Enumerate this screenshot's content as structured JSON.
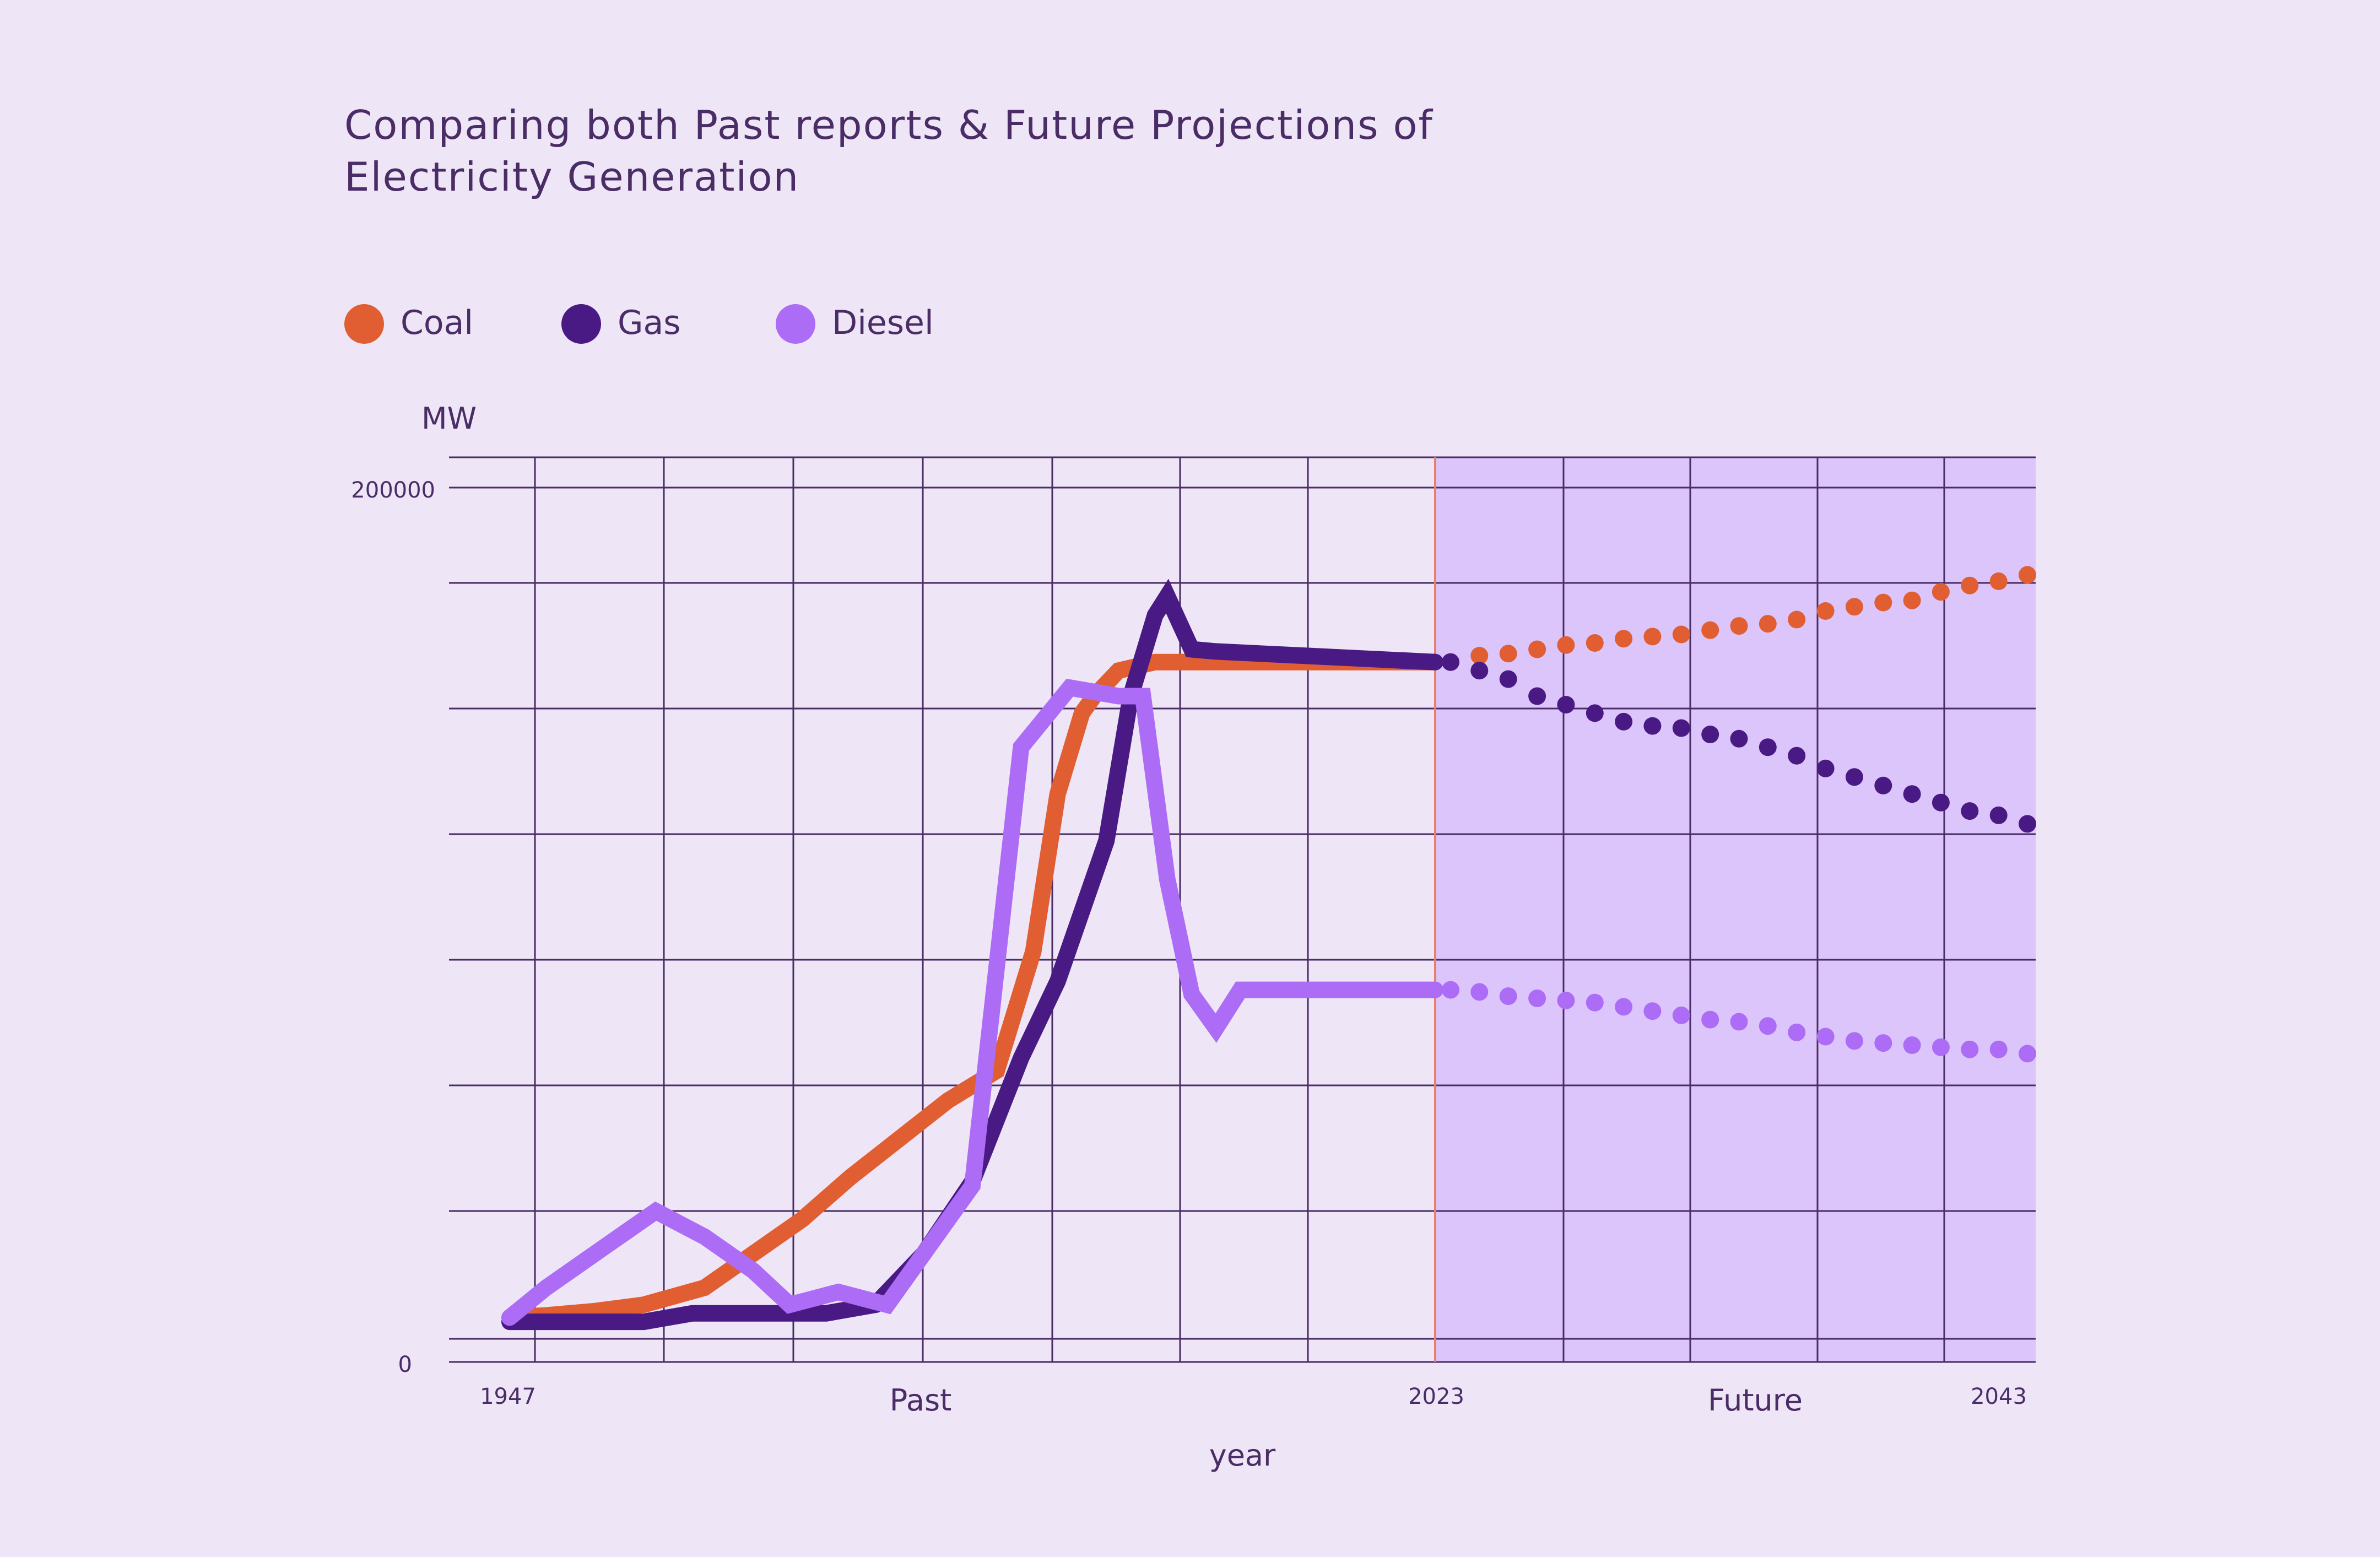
{
  "title": {
    "line1": "Comparing both Past reports & Future Projections of",
    "line2": "Electricity Generation"
  },
  "legend": [
    {
      "label": "Coal",
      "color": "#E15E32"
    },
    {
      "label": "Gas",
      "color": "#4A1A84"
    },
    {
      "label": "Diesel",
      "color": "#AD6CF5"
    }
  ],
  "chart_data": {
    "type": "line",
    "title": "Comparing both Past reports & Future Projections of Electricity Generation",
    "xlabel": "year",
    "ylabel": "MW",
    "xlim": [
      1945,
      2044
    ],
    "ylim": [
      -5000,
      205000
    ],
    "x_tick_labels": [
      "1947",
      "2023",
      "2043"
    ],
    "y_tick_labels": [
      "200000",
      "0"
    ],
    "region_labels": [
      "Past",
      "Future"
    ],
    "divider_year": 2023,
    "grid": true,
    "legend_position": "top-left",
    "future_region_color": "#DCC5FB",
    "grid_color": "#4A2C66",
    "divider_color": "#E87F6A",
    "series": [
      {
        "name": "Coal",
        "color": "#E15E32",
        "past": [
          [
            1947,
            5000
          ],
          [
            1950,
            5500
          ],
          [
            1954,
            6500
          ],
          [
            1958,
            8000
          ],
          [
            1963,
            12000
          ],
          [
            1967,
            20000
          ],
          [
            1971,
            28000
          ],
          [
            1975,
            38000
          ],
          [
            1979,
            47000
          ],
          [
            1983,
            56000
          ],
          [
            1987,
            63000
          ],
          [
            1990,
            91000
          ],
          [
            1992,
            128000
          ],
          [
            1994,
            147000
          ],
          [
            1995,
            151000
          ],
          [
            1997,
            157000
          ],
          [
            2000,
            159000
          ],
          [
            2023,
            159000
          ]
        ],
        "future": [
          [
            2023,
            159000
          ],
          [
            2025,
            160500
          ],
          [
            2027,
            161000
          ],
          [
            2029,
            162000
          ],
          [
            2031,
            163000
          ],
          [
            2033,
            163500
          ],
          [
            2035,
            164500
          ],
          [
            2037,
            165000
          ],
          [
            2039,
            165500
          ],
          [
            2041,
            166500
          ],
          [
            2043,
            167500
          ],
          [
            2045,
            168000
          ],
          [
            2047,
            169000
          ],
          [
            2049,
            171000
          ],
          [
            2051,
            172000
          ],
          [
            2053,
            173000
          ],
          [
            2055,
            173500
          ],
          [
            2057,
            175500
          ],
          [
            2059,
            177000
          ],
          [
            2061,
            178000
          ],
          [
            2063,
            179500
          ]
        ]
      },
      {
        "name": "Gas",
        "color": "#4A1A84",
        "past": [
          [
            1947,
            4000
          ],
          [
            1952,
            4000
          ],
          [
            1958,
            4000
          ],
          [
            1962,
            6000
          ],
          [
            1968,
            6000
          ],
          [
            1973,
            6000
          ],
          [
            1977,
            8000
          ],
          [
            1981,
            20000
          ],
          [
            1985,
            37000
          ],
          [
            1989,
            66000
          ],
          [
            1992,
            84000
          ],
          [
            1996,
            117000
          ],
          [
            1998,
            151000
          ],
          [
            2000,
            170000
          ],
          [
            2001,
            174500
          ],
          [
            2003,
            162000
          ],
          [
            2005,
            161500
          ],
          [
            2023,
            159000
          ]
        ],
        "future": [
          [
            2023,
            159000
          ],
          [
            2025,
            157000
          ],
          [
            2027,
            155000
          ],
          [
            2029,
            151000
          ],
          [
            2031,
            149000
          ],
          [
            2033,
            147000
          ],
          [
            2035,
            145000
          ],
          [
            2037,
            144000
          ],
          [
            2039,
            143500
          ],
          [
            2041,
            142000
          ],
          [
            2043,
            141000
          ],
          [
            2045,
            139000
          ],
          [
            2047,
            137000
          ],
          [
            2049,
            134000
          ],
          [
            2051,
            132000
          ],
          [
            2053,
            130000
          ],
          [
            2055,
            128000
          ],
          [
            2057,
            126000
          ],
          [
            2059,
            124000
          ],
          [
            2061,
            123000
          ],
          [
            2063,
            121000
          ]
        ]
      },
      {
        "name": "Diesel",
        "color": "#AD6CF5",
        "past": [
          [
            1947,
            5000
          ],
          [
            1950,
            12000
          ],
          [
            1953,
            18000
          ],
          [
            1956,
            24000
          ],
          [
            1959,
            30000
          ],
          [
            1963,
            24000
          ],
          [
            1967,
            16000
          ],
          [
            1970,
            8000
          ],
          [
            1974,
            11000
          ],
          [
            1978,
            8000
          ],
          [
            1981,
            20000
          ],
          [
            1985,
            36000
          ],
          [
            1989,
            139000
          ],
          [
            1993,
            153000
          ],
          [
            1997,
            151000
          ],
          [
            1999,
            151000
          ],
          [
            2001,
            108000
          ],
          [
            2003,
            81000
          ],
          [
            2005,
            73000
          ],
          [
            2007,
            82000
          ],
          [
            2023,
            82000
          ]
        ],
        "future": [
          [
            2023,
            82000
          ],
          [
            2025,
            81500
          ],
          [
            2027,
            80500
          ],
          [
            2029,
            80000
          ],
          [
            2031,
            79500
          ],
          [
            2033,
            79000
          ],
          [
            2035,
            78000
          ],
          [
            2037,
            77000
          ],
          [
            2039,
            76000
          ],
          [
            2041,
            75000
          ],
          [
            2043,
            74500
          ],
          [
            2045,
            73500
          ],
          [
            2047,
            72000
          ],
          [
            2049,
            71000
          ],
          [
            2051,
            70000
          ],
          [
            2053,
            69500
          ],
          [
            2055,
            69000
          ],
          [
            2057,
            68500
          ],
          [
            2059,
            68000
          ],
          [
            2061,
            68000
          ],
          [
            2063,
            67000
          ]
        ]
      }
    ]
  }
}
